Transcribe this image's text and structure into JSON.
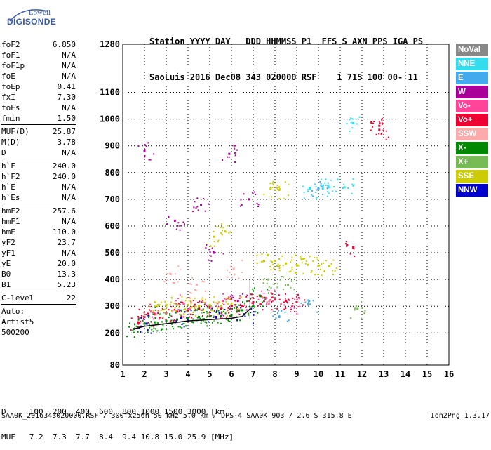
{
  "logo": {
    "line1": "Lowell",
    "line2": "DIGISONDE"
  },
  "header": {
    "line1": "Station YYYY DAY   DDD HHMMSS P1  FFS S AXN PPS IGA PS",
    "line2": "SaoLuis 2016 Dec08 343 020000 RSF    1 715 100 00- 11"
  },
  "params": [
    {
      "key": "foF2",
      "value": "6.850"
    },
    {
      "key": "foF1",
      "value": "N/A"
    },
    {
      "key": "foF1p",
      "value": "N/A"
    },
    {
      "key": "foE",
      "value": "N/A"
    },
    {
      "key": "foEp",
      "value": "0.41"
    },
    {
      "key": "fxI",
      "value": "7.30"
    },
    {
      "key": "foEs",
      "value": "N/A"
    },
    {
      "key": "fmin",
      "value": "1.50"
    },
    {
      "sep": true
    },
    {
      "key": "MUF(D)",
      "value": "25.87"
    },
    {
      "key": "M(D)",
      "value": "3.78"
    },
    {
      "key": "D",
      "value": "N/A"
    },
    {
      "sep": true
    },
    {
      "key": "h`F",
      "value": "240.0"
    },
    {
      "key": "h`F2",
      "value": "240.0"
    },
    {
      "key": "h`E",
      "value": "N/A"
    },
    {
      "key": "h`Es",
      "value": "N/A"
    },
    {
      "sep": true
    },
    {
      "key": "hmF2",
      "value": "257.6"
    },
    {
      "key": "hmF1",
      "value": "N/A"
    },
    {
      "key": "hmE",
      "value": "110.0"
    },
    {
      "key": "yF2",
      "value": "23.7"
    },
    {
      "key": "yF1",
      "value": "N/A"
    },
    {
      "key": "yE",
      "value": "20.0"
    },
    {
      "key": "B0",
      "value": "13.3"
    },
    {
      "key": "B1",
      "value": "5.23"
    },
    {
      "sep": true
    },
    {
      "key": "C-level",
      "value": "22"
    },
    {
      "sep": true
    },
    {
      "text": "Auto:"
    },
    {
      "text": "Artist5"
    },
    {
      "text": "500200"
    }
  ],
  "legend": [
    {
      "label": "NoVal",
      "color": "#888888"
    },
    {
      "label": "NNE",
      "color": "#33ddee"
    },
    {
      "label": "E",
      "color": "#44aaee"
    },
    {
      "label": "W",
      "color": "#aa0099"
    },
    {
      "label": "Vo-",
      "color": "#ff4499"
    },
    {
      "label": "Vo+",
      "color": "#ee0033"
    },
    {
      "label": "SSW",
      "color": "#ffaaaa"
    },
    {
      "label": "X-",
      "color": "#008800"
    },
    {
      "label": "X+",
      "color": "#77bb55"
    },
    {
      "label": "SSE",
      "color": "#cccc00"
    },
    {
      "label": "NNW",
      "color": "#0000cc"
    }
  ],
  "footer": {
    "d_line": "D     100  200  400  600  800 1000 1500 3000 [km]",
    "muf_line": "MUF   7.2  7.3  7.7  8.4  9.4 10.8 15.0 25.9 [MHz]",
    "file_line": "SAA0K_2016343020000.RSF / 300fx256h 50 kHz 5.0 km / DPS-4 SAA0K 903 / 2.6 S 315.8 E",
    "version": "Ion2Png 1.3.17"
  },
  "chart_data": {
    "type": "scatter",
    "title": "",
    "xlabel": "",
    "ylabel": "",
    "xlim": [
      1,
      16
    ],
    "ylim": [
      80,
      1280
    ],
    "xticks": [
      "1",
      "2",
      "3",
      "4",
      "5",
      "6",
      "7",
      "8",
      "9",
      "10",
      "11",
      "12",
      "13",
      "14",
      "15",
      "16"
    ],
    "yticks": [
      80,
      200,
      300,
      400,
      500,
      600,
      700,
      800,
      900,
      1000,
      1100,
      1280
    ],
    "grid": true,
    "series": [
      {
        "name": "Vo+",
        "color": "#ee0033",
        "points": [
          [
            1.7,
            240
          ],
          [
            2.0,
            260
          ],
          [
            2.5,
            270
          ],
          [
            3.0,
            275
          ],
          [
            3.5,
            280
          ],
          [
            4.0,
            285
          ],
          [
            4.5,
            290
          ],
          [
            5.0,
            295
          ],
          [
            5.5,
            290
          ],
          [
            6.0,
            300
          ],
          [
            6.5,
            300
          ],
          [
            7.0,
            315
          ],
          [
            7.5,
            320
          ],
          [
            8.0,
            325
          ],
          [
            8.5,
            320
          ],
          [
            9.0,
            315
          ],
          [
            12.8,
            960
          ],
          [
            12.8,
            975
          ],
          [
            11.6,
            520
          ]
        ]
      },
      {
        "name": "SSE",
        "color": "#cccc00",
        "points": [
          [
            2.5,
            300
          ],
          [
            3.0,
            305
          ],
          [
            3.5,
            305
          ],
          [
            4.0,
            305
          ],
          [
            4.5,
            300
          ],
          [
            5.0,
            305
          ],
          [
            5.5,
            300
          ],
          [
            6.0,
            310
          ],
          [
            7.5,
            470
          ],
          [
            8.0,
            470
          ],
          [
            8.5,
            460
          ],
          [
            9.0,
            455
          ],
          [
            9.5,
            455
          ],
          [
            10.0,
            450
          ],
          [
            10.5,
            450
          ],
          [
            7.8,
            740
          ],
          [
            8.2,
            735
          ],
          [
            5.7,
            580
          ],
          [
            5.2,
            560
          ]
        ]
      },
      {
        "name": "X-",
        "color": "#008800",
        "points": [
          [
            1.5,
            215
          ],
          [
            2.0,
            235
          ],
          [
            2.5,
            240
          ],
          [
            3.0,
            245
          ],
          [
            3.5,
            250
          ],
          [
            4.0,
            255
          ],
          [
            4.5,
            260
          ],
          [
            5.0,
            262
          ],
          [
            5.5,
            265
          ],
          [
            6.0,
            268
          ],
          [
            6.5,
            285
          ],
          [
            7.0,
            300
          ],
          [
            7.3,
            340
          ]
        ]
      },
      {
        "name": "W",
        "color": "#aa0099",
        "points": [
          [
            2.0,
            880
          ],
          [
            5.9,
            870
          ],
          [
            3.4,
            620
          ],
          [
            4.6,
            680
          ],
          [
            5.2,
            500
          ],
          [
            6.3,
            320
          ],
          [
            6.8,
            700
          ]
        ]
      },
      {
        "name": "NNE",
        "color": "#33ddee",
        "points": [
          [
            10.2,
            740
          ],
          [
            10.5,
            745
          ],
          [
            11.2,
            745
          ],
          [
            11.6,
            985
          ],
          [
            9.6,
            740
          ]
        ]
      },
      {
        "name": "E",
        "color": "#44aaee",
        "points": [
          [
            8.2,
            260
          ],
          [
            9.5,
            310
          ],
          [
            10.0,
            740
          ]
        ]
      },
      {
        "name": "NNW",
        "color": "#0000cc",
        "points": [
          [
            2.1,
            235
          ],
          [
            3.7,
            255
          ],
          [
            5.3,
            260
          ],
          [
            6.6,
            270
          ]
        ]
      },
      {
        "name": "Vo-",
        "color": "#ff4499",
        "points": [
          [
            2.3,
            280
          ],
          [
            3.8,
            310
          ],
          [
            5.6,
            320
          ],
          [
            7.6,
            330
          ],
          [
            8.8,
            300
          ]
        ]
      },
      {
        "name": "SSW",
        "color": "#ffaaaa",
        "points": [
          [
            3.2,
            420
          ],
          [
            4.4,
            380
          ],
          [
            6.1,
            440
          ]
        ]
      },
      {
        "name": "X+",
        "color": "#77bb55",
        "points": [
          [
            2.7,
            270
          ],
          [
            4.9,
            275
          ],
          [
            7.7,
            400
          ],
          [
            8.6,
            380
          ],
          [
            11.8,
            290
          ]
        ]
      }
    ],
    "trace": {
      "name": "profile",
      "color": "#000000",
      "points": [
        [
          1.5,
          215
        ],
        [
          2.0,
          225
        ],
        [
          3.0,
          235
        ],
        [
          4.0,
          245
        ],
        [
          5.0,
          250
        ],
        [
          6.0,
          255
        ],
        [
          6.5,
          262
        ],
        [
          6.85,
          290
        ]
      ]
    },
    "vlines": [
      {
        "x": 6.85,
        "y": [
          250,
          400
        ]
      }
    ]
  }
}
